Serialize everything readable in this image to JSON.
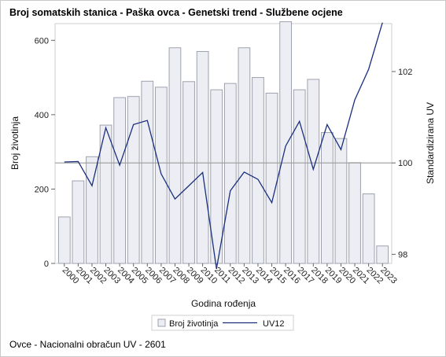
{
  "title": "Broj somatskih stanica - Paška ovca - Genetski trend - Službene ocjene",
  "footnote": "Ovce - Nacionalni obračun UV - 2601",
  "colors": {
    "bar_fill": "#eceef4",
    "bar_stroke": "#9ea2ad",
    "line": "#1a2f7e",
    "refline": "#9b9b9b",
    "frame": "#cfcfcf"
  },
  "chart_data": {
    "type": "bar",
    "xlabel": "Godina rođenja",
    "ylabel": "Broj životinja",
    "y2label": "Standardizirana UV",
    "categories": [
      "2000",
      "2001",
      "2002",
      "2003",
      "2004",
      "2005",
      "2006",
      "2007",
      "2008",
      "2009",
      "2010",
      "2011",
      "2012",
      "2013",
      "2014",
      "2015",
      "2016",
      "2017",
      "2018",
      "2019",
      "2020",
      "2021",
      "2022",
      "2023"
    ],
    "ylim": [
      0,
      645
    ],
    "y2lim": [
      97.8,
      103.05
    ],
    "yticks": [
      0,
      200,
      400,
      600
    ],
    "y2ticks": [
      98,
      100,
      102
    ],
    "y2_refline": 100,
    "series": [
      {
        "name": "Broj životinja",
        "type": "bar",
        "axis": "left",
        "values": [
          125,
          222,
          287,
          372,
          446,
          449,
          490,
          474,
          580,
          489,
          570,
          467,
          484,
          580,
          500,
          458,
          650,
          467,
          495,
          352,
          336,
          271,
          187,
          47
        ]
      },
      {
        "name": "UV12",
        "type": "line",
        "axis": "right",
        "values": [
          100.02,
          100.03,
          99.5,
          100.77,
          99.95,
          100.84,
          100.93,
          99.76,
          99.21,
          99.5,
          99.79,
          97.68,
          99.39,
          99.8,
          99.64,
          99.13,
          100.37,
          100.91,
          99.86,
          100.84,
          100.29,
          101.38,
          102.05,
          103.07
        ]
      }
    ],
    "legend": {
      "position": "bottom",
      "entries": [
        "Broj životinja",
        "UV12"
      ]
    },
    "grid": false
  }
}
